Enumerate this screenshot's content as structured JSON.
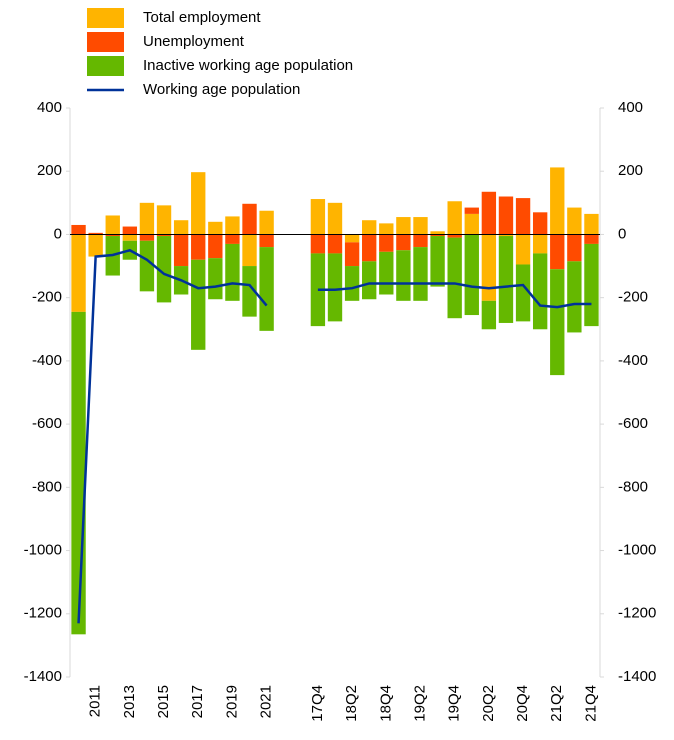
{
  "chart_data": {
    "type": "bar",
    "stacked": true,
    "categories": [
      null,
      "2011",
      null,
      "2013",
      null,
      "2015",
      null,
      "2017",
      null,
      "2019",
      null,
      "2021",
      null,
      null,
      "17Q4",
      null,
      "18Q2",
      null,
      "18Q4",
      null,
      "19Q2",
      null,
      "19Q4",
      null,
      "20Q2",
      null,
      "20Q4",
      null,
      "21Q2",
      null,
      "21Q4"
    ],
    "series": [
      {
        "name": "Total employment",
        "color": "#FFB400",
        "values": [
          -245,
          -70,
          60,
          -20,
          100,
          92,
          45,
          197,
          40,
          57,
          -100,
          75,
          null,
          null,
          112,
          100,
          -25,
          45,
          35,
          55,
          55,
          10,
          105,
          65,
          -210,
          -5,
          -95,
          -60,
          212,
          85,
          65
        ]
      },
      {
        "name": "Unemployment",
        "color": "#FF4B00",
        "values": [
          30,
          5,
          -5,
          25,
          -20,
          -5,
          -100,
          -80,
          -75,
          -30,
          97,
          -40,
          null,
          null,
          -60,
          -60,
          -75,
          -85,
          -55,
          -50,
          -40,
          -5,
          -10,
          20,
          135,
          120,
          115,
          70,
          -110,
          -85,
          -30
        ]
      },
      {
        "name": "Inactive working age population",
        "color": "#65B800",
        "values": [
          -1020,
          0,
          -125,
          -60,
          -160,
          -210,
          -90,
          -285,
          -130,
          -180,
          -160,
          -265,
          null,
          null,
          -230,
          -215,
          -110,
          -120,
          -135,
          -160,
          -170,
          -160,
          -255,
          -255,
          -90,
          -275,
          -180,
          -240,
          -335,
          -225,
          -260
        ]
      },
      {
        "name": "Working age population",
        "type": "line",
        "color": "#003299",
        "values": [
          -1230,
          -70,
          -65,
          -50,
          -80,
          -125,
          -145,
          -170,
          -165,
          -155,
          -160,
          -225,
          null,
          null,
          -175,
          -175,
          -170,
          -155,
          -155,
          -155,
          -155,
          -155,
          -155,
          -165,
          -170,
          -165,
          -160,
          -225,
          -230,
          -220,
          -220
        ]
      }
    ],
    "ylim": [
      -1400,
      400
    ],
    "yticks": [
      -1400,
      -1200,
      -1000,
      -800,
      -600,
      -400,
      -200,
      0,
      200,
      400
    ],
    "y2lim": [
      -1400,
      400
    ],
    "y2ticks": [
      -1400,
      -1200,
      -1000,
      -800,
      -600,
      -400,
      -200,
      0,
      200,
      400
    ]
  }
}
